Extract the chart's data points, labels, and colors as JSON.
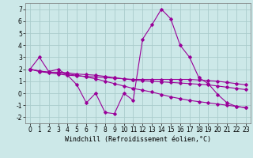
{
  "xlabel": "Windchill (Refroidissement éolien,°C)",
  "background_color": "#cce8e8",
  "grid_color": "#aacccc",
  "line_color": "#990099",
  "x_values": [
    0,
    1,
    2,
    3,
    4,
    5,
    6,
    7,
    8,
    9,
    10,
    11,
    12,
    13,
    14,
    15,
    16,
    17,
    18,
    19,
    20,
    21,
    22,
    23
  ],
  "series": {
    "jagged": [
      2.0,
      3.0,
      1.8,
      2.0,
      1.5,
      0.7,
      -0.8,
      0.0,
      -1.6,
      -1.7,
      0.0,
      -0.6,
      4.5,
      5.7,
      7.0,
      6.2,
      4.0,
      3.0,
      1.3,
      0.8,
      -0.1,
      -0.8,
      -1.1,
      -1.2
    ],
    "smooth1": [
      2.0,
      1.8,
      1.7,
      1.6,
      1.5,
      1.45,
      1.4,
      1.35,
      1.3,
      1.25,
      1.2,
      1.15,
      1.15,
      1.15,
      1.15,
      1.15,
      1.15,
      1.15,
      1.1,
      1.05,
      1.0,
      0.9,
      0.8,
      0.7
    ],
    "smooth2": [
      2.0,
      1.85,
      1.75,
      1.75,
      1.7,
      1.6,
      1.55,
      1.5,
      1.4,
      1.3,
      1.2,
      1.1,
      1.05,
      1.0,
      0.95,
      0.9,
      0.85,
      0.8,
      0.75,
      0.7,
      0.6,
      0.5,
      0.4,
      0.3
    ],
    "smooth3": [
      2.0,
      1.85,
      1.75,
      1.7,
      1.6,
      1.5,
      1.35,
      1.2,
      1.0,
      0.8,
      0.6,
      0.4,
      0.25,
      0.1,
      -0.1,
      -0.3,
      -0.45,
      -0.6,
      -0.7,
      -0.8,
      -0.9,
      -1.0,
      -1.1,
      -1.2
    ]
  },
  "ylim": [
    -2.5,
    7.5
  ],
  "xlim": [
    -0.5,
    23.5
  ],
  "yticks": [
    -2,
    -1,
    0,
    1,
    2,
    3,
    4,
    5,
    6,
    7
  ],
  "xticks": [
    0,
    1,
    2,
    3,
    4,
    5,
    6,
    7,
    8,
    9,
    10,
    11,
    12,
    13,
    14,
    15,
    16,
    17,
    18,
    19,
    20,
    21,
    22,
    23
  ],
  "xlabel_fontsize": 6.0,
  "tick_fontsize": 5.5,
  "marker": "D",
  "markersize": 2.0,
  "linewidth": 0.8
}
